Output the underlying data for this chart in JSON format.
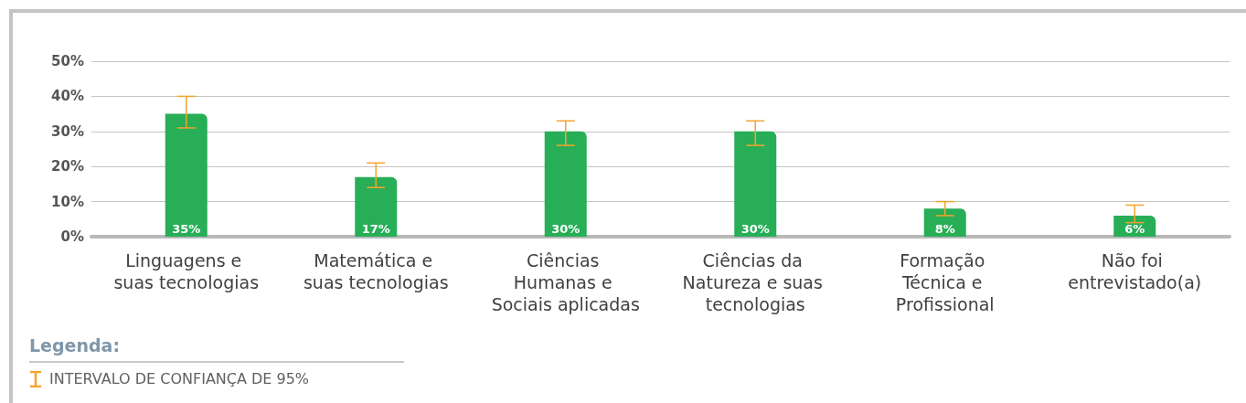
{
  "chart_data": {
    "type": "bar",
    "categories": [
      "Linguagens e suas tecnologias",
      "Matemática e suas tecnologias",
      "Ciências Humanas e Sociais aplicadas",
      "Ciências da Natureza e suas tecnologias",
      "Formação Técnica e Profissional",
      "Não foi entrevistado(a)"
    ],
    "values": [
      35,
      17,
      30,
      30,
      8,
      6
    ],
    "value_labels": [
      "35%",
      "17%",
      "30%",
      "30%",
      "8%",
      "6%"
    ],
    "errors": [
      [
        31,
        40
      ],
      [
        14,
        21
      ],
      [
        26,
        33
      ],
      [
        26,
        33
      ],
      [
        6,
        10
      ],
      [
        4,
        9
      ]
    ],
    "color": "#27ae57",
    "ylim": [
      0,
      50
    ],
    "yticks": [
      {
        "value": 0,
        "label": "0%"
      },
      {
        "value": 10,
        "label": "10%"
      },
      {
        "value": 20,
        "label": "20%"
      },
      {
        "value": 30,
        "label": "30%"
      },
      {
        "value": 40,
        "label": "40%"
      },
      {
        "value": 50,
        "label": "50%"
      }
    ],
    "grid": "y",
    "legend_title": "Legenda:",
    "annotations": [
      "INTERVALO DE CONFIANÇA DE 95%"
    ]
  }
}
